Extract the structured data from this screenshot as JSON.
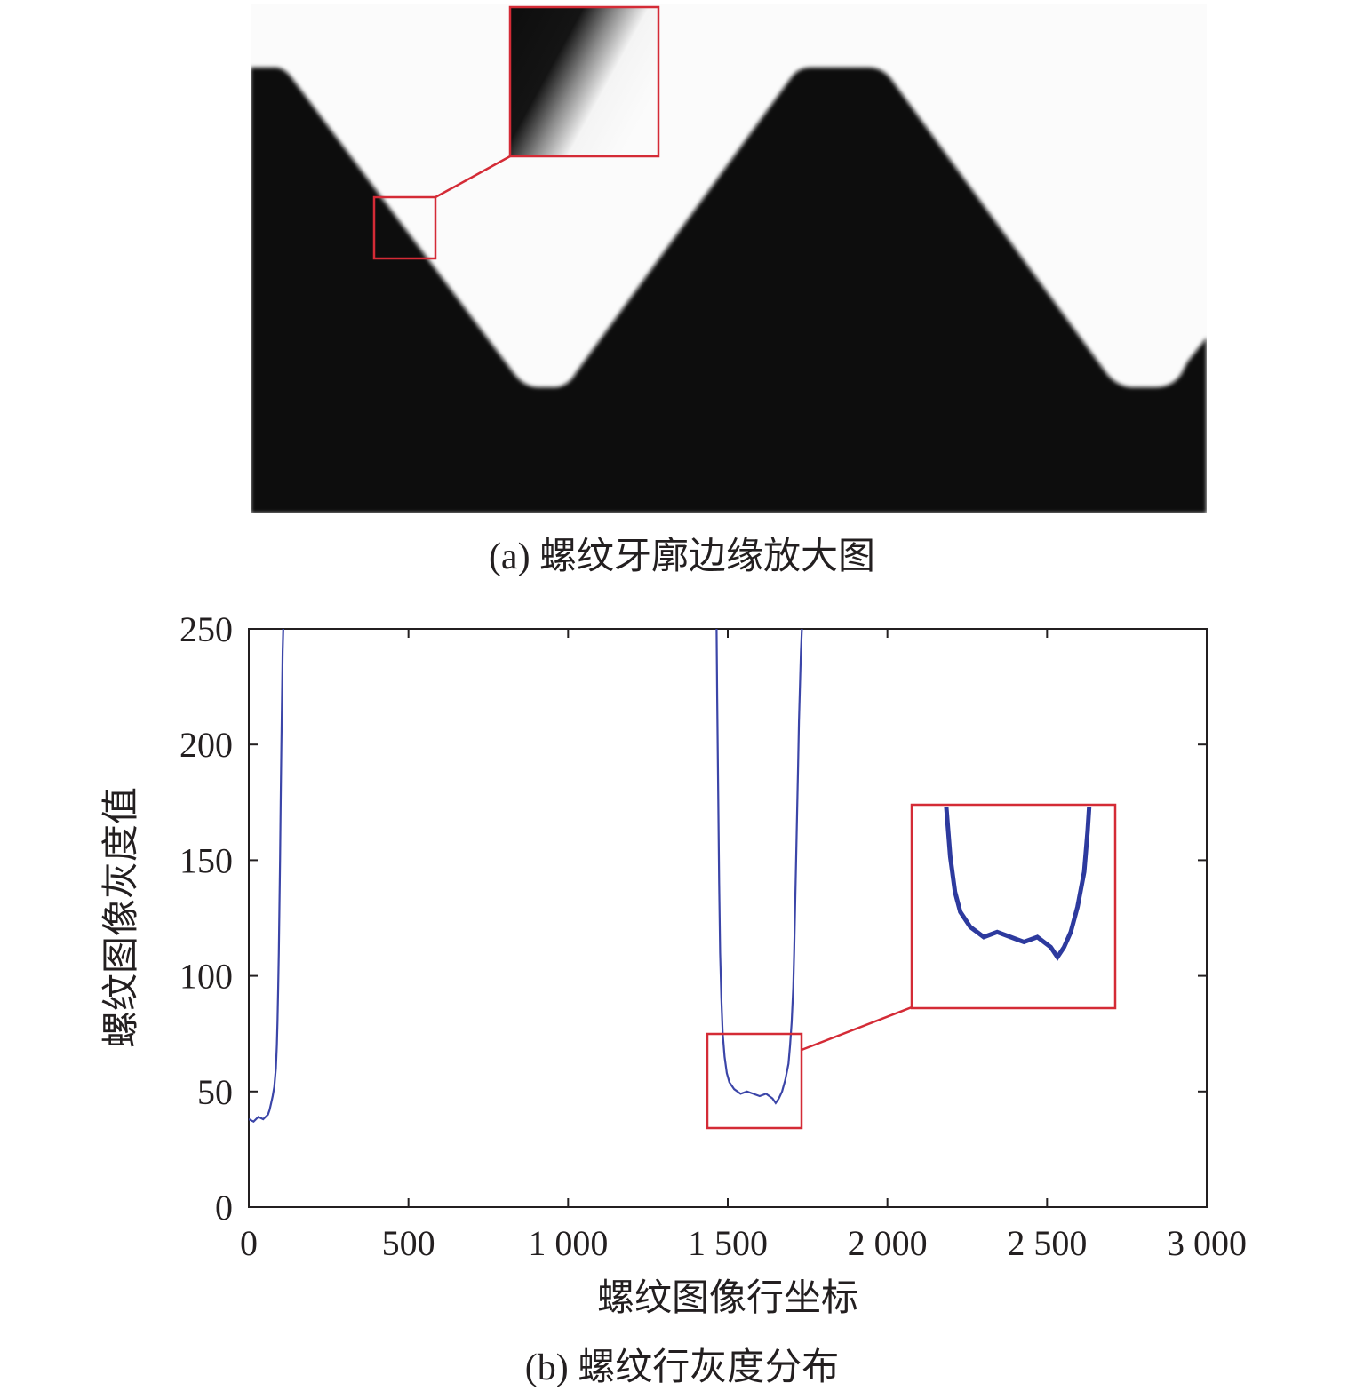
{
  "figure": {
    "caption_a": "(a) 螺纹牙廓边缘放大图",
    "caption_b": "(b) 螺纹行灰度分布"
  },
  "colors": {
    "thread_body": "#0d0d0d",
    "background_light": "#fbfbfb",
    "highlight_box": "#d42b36",
    "series_line": "#3b45a8",
    "axis": "#231f20"
  },
  "chart_data": {
    "type": "line",
    "xlabel": "螺纹图像行坐标",
    "ylabel": "螺纹图像灰度值",
    "xlim": [
      0,
      3000
    ],
    "ylim": [
      0,
      250
    ],
    "x_ticks": [
      0,
      500,
      1000,
      1500,
      2000,
      2500,
      3000
    ],
    "x_tick_labels": [
      "0",
      "500",
      "1 000",
      "1 500",
      "2 000",
      "2 500",
      "3 000"
    ],
    "y_ticks": [
      0,
      50,
      100,
      150,
      200,
      250
    ],
    "y_tick_labels": [
      "0",
      "50",
      "100",
      "150",
      "200",
      "250"
    ],
    "grid": false,
    "series": [
      {
        "x": [
          0,
          15,
          30,
          45,
          60,
          65,
          70,
          75,
          80,
          85,
          88,
          90,
          92,
          94,
          96,
          98,
          100,
          102,
          104,
          106,
          108,
          1465,
          1467,
          1470,
          1473,
          1476,
          1480,
          1484,
          1490,
          1497,
          1505,
          1520,
          1540,
          1560,
          1580,
          1600,
          1620,
          1640,
          1650,
          1660,
          1670,
          1680,
          1690,
          1695,
          1700,
          1705,
          1708,
          1711,
          1714,
          1717,
          1720,
          1723,
          1726,
          1729,
          1732
        ],
        "y": [
          38,
          37,
          39,
          38,
          40,
          42,
          45,
          48,
          52,
          60,
          70,
          80,
          95,
          110,
          130,
          150,
          175,
          200,
          220,
          240,
          250,
          250,
          220,
          180,
          140,
          110,
          90,
          75,
          65,
          58,
          54,
          51,
          49,
          50,
          49,
          48,
          49,
          47,
          45,
          47,
          50,
          55,
          62,
          70,
          80,
          95,
          110,
          130,
          150,
          170,
          190,
          210,
          225,
          240,
          250
        ]
      }
    ],
    "inset_zoom": {
      "x_range": [
        1435,
        1735
      ],
      "y_range": [
        35,
        75
      ]
    }
  }
}
